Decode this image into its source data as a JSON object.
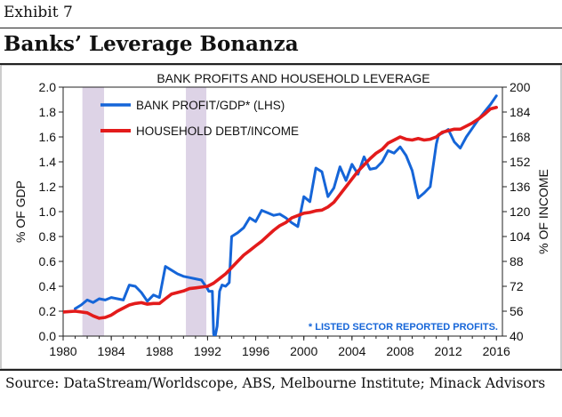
{
  "header": {
    "exhibit": "Exhibit 7",
    "title": "Banks’ Leverage Bonanza"
  },
  "footer": {
    "source": "Source: DataStream/Worldscope, ABS, Melbourne Institute; Minack Advisors"
  },
  "colors": {
    "bank_series": "#1565d8",
    "household_series": "#e31b1b",
    "recession_shade": "#ddd3e6",
    "note_text": "#1565d8"
  },
  "chart_data": {
    "type": "line",
    "title": "BANK PROFITS AND HOUSEHOLD LEVERAGE",
    "xlabel": "",
    "ylabel_left": "% OF GDP",
    "ylabel_right": "% OF INCOME",
    "xlim": [
      1980,
      2016.5
    ],
    "ylim_left": [
      0,
      2.0
    ],
    "ylim_right": [
      40,
      200
    ],
    "x_ticks": [
      "1980",
      "1984",
      "1988",
      "1992",
      "1996",
      "2000",
      "2004",
      "2008",
      "2012",
      "2016"
    ],
    "y_ticks_left": [
      "0.0",
      "0.2",
      "0.4",
      "0.6",
      "0.8",
      "1.0",
      "1.2",
      "1.4",
      "1.6",
      "1.8",
      "2.0"
    ],
    "y_ticks_right": [
      "40",
      "56",
      "72",
      "88",
      "104",
      "120",
      "136",
      "152",
      "168",
      "184",
      "200"
    ],
    "recession_bands": [
      [
        1981.6,
        1983.4
      ],
      [
        1990.2,
        1991.9
      ]
    ],
    "legend_position": "top-left",
    "annotation": "* LISTED SECTOR REPORTED PROFITS.",
    "series": [
      {
        "name": "BANK PROFIT/GDP* (LHS)",
        "axis": "left",
        "x": [
          1981.0,
          1981.5,
          1982.0,
          1982.5,
          1983.0,
          1983.5,
          1984.0,
          1984.5,
          1985.0,
          1985.5,
          1986.0,
          1986.5,
          1987.0,
          1987.5,
          1988.0,
          1988.5,
          1989.0,
          1989.5,
          1990.0,
          1990.5,
          1991.0,
          1991.5,
          1992.0,
          1992.1,
          1992.4,
          1992.5,
          1992.6,
          1992.8,
          1993.0,
          1993.2,
          1993.5,
          1993.8,
          1994.0,
          1994.5,
          1995.0,
          1995.5,
          1996.0,
          1996.5,
          1997.0,
          1997.5,
          1998.0,
          1998.5,
          1999.0,
          1999.5,
          2000.0,
          2000.5,
          2001.0,
          2001.5,
          2002.0,
          2002.5,
          2003.0,
          2003.5,
          2004.0,
          2004.5,
          2005.0,
          2005.5,
          2006.0,
          2006.5,
          2007.0,
          2007.5,
          2008.0,
          2008.5,
          2009.0,
          2009.5,
          2010.0,
          2010.5,
          2011.0,
          2011.2,
          2011.5,
          2012.0,
          2012.5,
          2013.0,
          2013.5,
          2014.0,
          2014.5,
          2015.0,
          2015.5,
          2016.0
        ],
        "values": [
          0.22,
          0.25,
          0.29,
          0.27,
          0.3,
          0.29,
          0.31,
          0.3,
          0.29,
          0.41,
          0.4,
          0.35,
          0.28,
          0.33,
          0.31,
          0.56,
          0.53,
          0.5,
          0.48,
          0.47,
          0.46,
          0.45,
          0.38,
          0.36,
          0.36,
          0.02,
          -0.02,
          0.08,
          0.36,
          0.41,
          0.4,
          0.43,
          0.8,
          0.83,
          0.87,
          0.95,
          0.92,
          1.01,
          0.99,
          0.97,
          0.98,
          0.95,
          0.91,
          0.88,
          1.12,
          1.08,
          1.35,
          1.32,
          1.12,
          1.19,
          1.36,
          1.25,
          1.38,
          1.3,
          1.44,
          1.34,
          1.35,
          1.4,
          1.49,
          1.47,
          1.52,
          1.45,
          1.33,
          1.11,
          1.15,
          1.2,
          1.54,
          1.62,
          1.63,
          1.66,
          1.56,
          1.51,
          1.6,
          1.67,
          1.74,
          1.8,
          1.86,
          1.93
        ]
      },
      {
        "name": "HOUSEHOLD DEBT/INCOME",
        "axis": "right",
        "x": [
          1980.0,
          1981.0,
          1981.5,
          1982.0,
          1982.5,
          1983.0,
          1983.5,
          1984.0,
          1984.5,
          1985.0,
          1985.5,
          1986.0,
          1986.5,
          1987.0,
          1987.5,
          1988.0,
          1988.5,
          1989.0,
          1989.5,
          1990.0,
          1990.5,
          1991.0,
          1991.5,
          1992.0,
          1992.5,
          1993.0,
          1993.5,
          1994.0,
          1994.5,
          1995.0,
          1995.5,
          1996.0,
          1996.5,
          1997.0,
          1997.5,
          1998.0,
          1998.5,
          1999.0,
          1999.5,
          2000.0,
          2000.5,
          2001.0,
          2001.5,
          2002.0,
          2002.5,
          2003.0,
          2003.5,
          2004.0,
          2004.5,
          2005.0,
          2005.5,
          2006.0,
          2006.5,
          2007.0,
          2007.5,
          2008.0,
          2008.5,
          2009.0,
          2009.5,
          2010.0,
          2010.5,
          2011.0,
          2011.5,
          2012.0,
          2012.5,
          2013.0,
          2013.5,
          2014.0,
          2014.5,
          2015.0,
          2015.5,
          2016.0
        ],
        "values": [
          55.5,
          56.0,
          55.5,
          55.0,
          53.0,
          51.5,
          52.0,
          53.5,
          56.0,
          58.0,
          60.0,
          61.0,
          61.5,
          60.5,
          61.0,
          61.0,
          64.0,
          67.0,
          68.0,
          69.0,
          70.5,
          71.0,
          71.5,
          72.0,
          74.0,
          77.0,
          80.0,
          84.0,
          88.0,
          92.0,
          95.0,
          98.0,
          101.0,
          104.5,
          108.0,
          111.0,
          113.0,
          116.0,
          117.5,
          119.0,
          119.5,
          120.5,
          121.0,
          123.0,
          126.0,
          131.0,
          136.0,
          141.0,
          146.0,
          150.0,
          154.0,
          157.5,
          160.0,
          164.0,
          166.0,
          168.0,
          166.5,
          166.0,
          167.0,
          166.0,
          166.5,
          168.0,
          171.0,
          172.0,
          173.0,
          173.0,
          175.0,
          177.0,
          179.5,
          182.5,
          186.0,
          187.0
        ]
      }
    ]
  }
}
